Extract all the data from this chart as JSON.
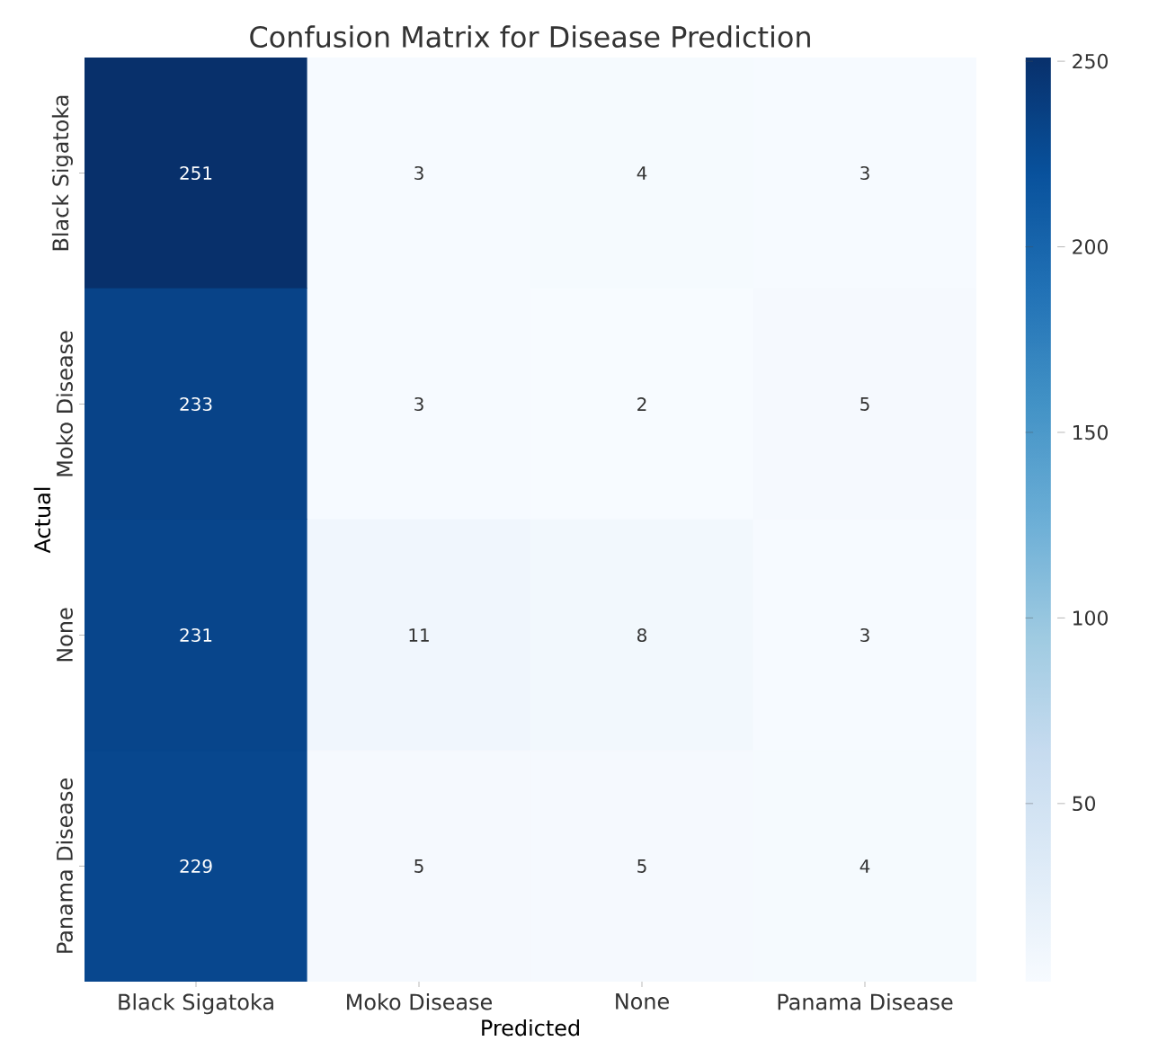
{
  "chart_data": {
    "type": "heatmap",
    "title": "Confusion Matrix for Disease Prediction",
    "xlabel": "Predicted",
    "ylabel": "Actual",
    "categories": [
      "Black Sigatoka",
      "Moko Disease",
      "None",
      "Panama Disease"
    ],
    "y_categories": [
      "Black Sigatoka",
      "Moko Disease",
      "None",
      "Panama Disease"
    ],
    "cells": [
      [
        251,
        3,
        4,
        3
      ],
      [
        233,
        3,
        2,
        5
      ],
      [
        231,
        11,
        8,
        3
      ],
      [
        229,
        5,
        5,
        4
      ]
    ],
    "data_labels": true,
    "clim": [
      2,
      251
    ],
    "cticks": [
      50,
      100,
      150,
      200,
      250
    ]
  }
}
